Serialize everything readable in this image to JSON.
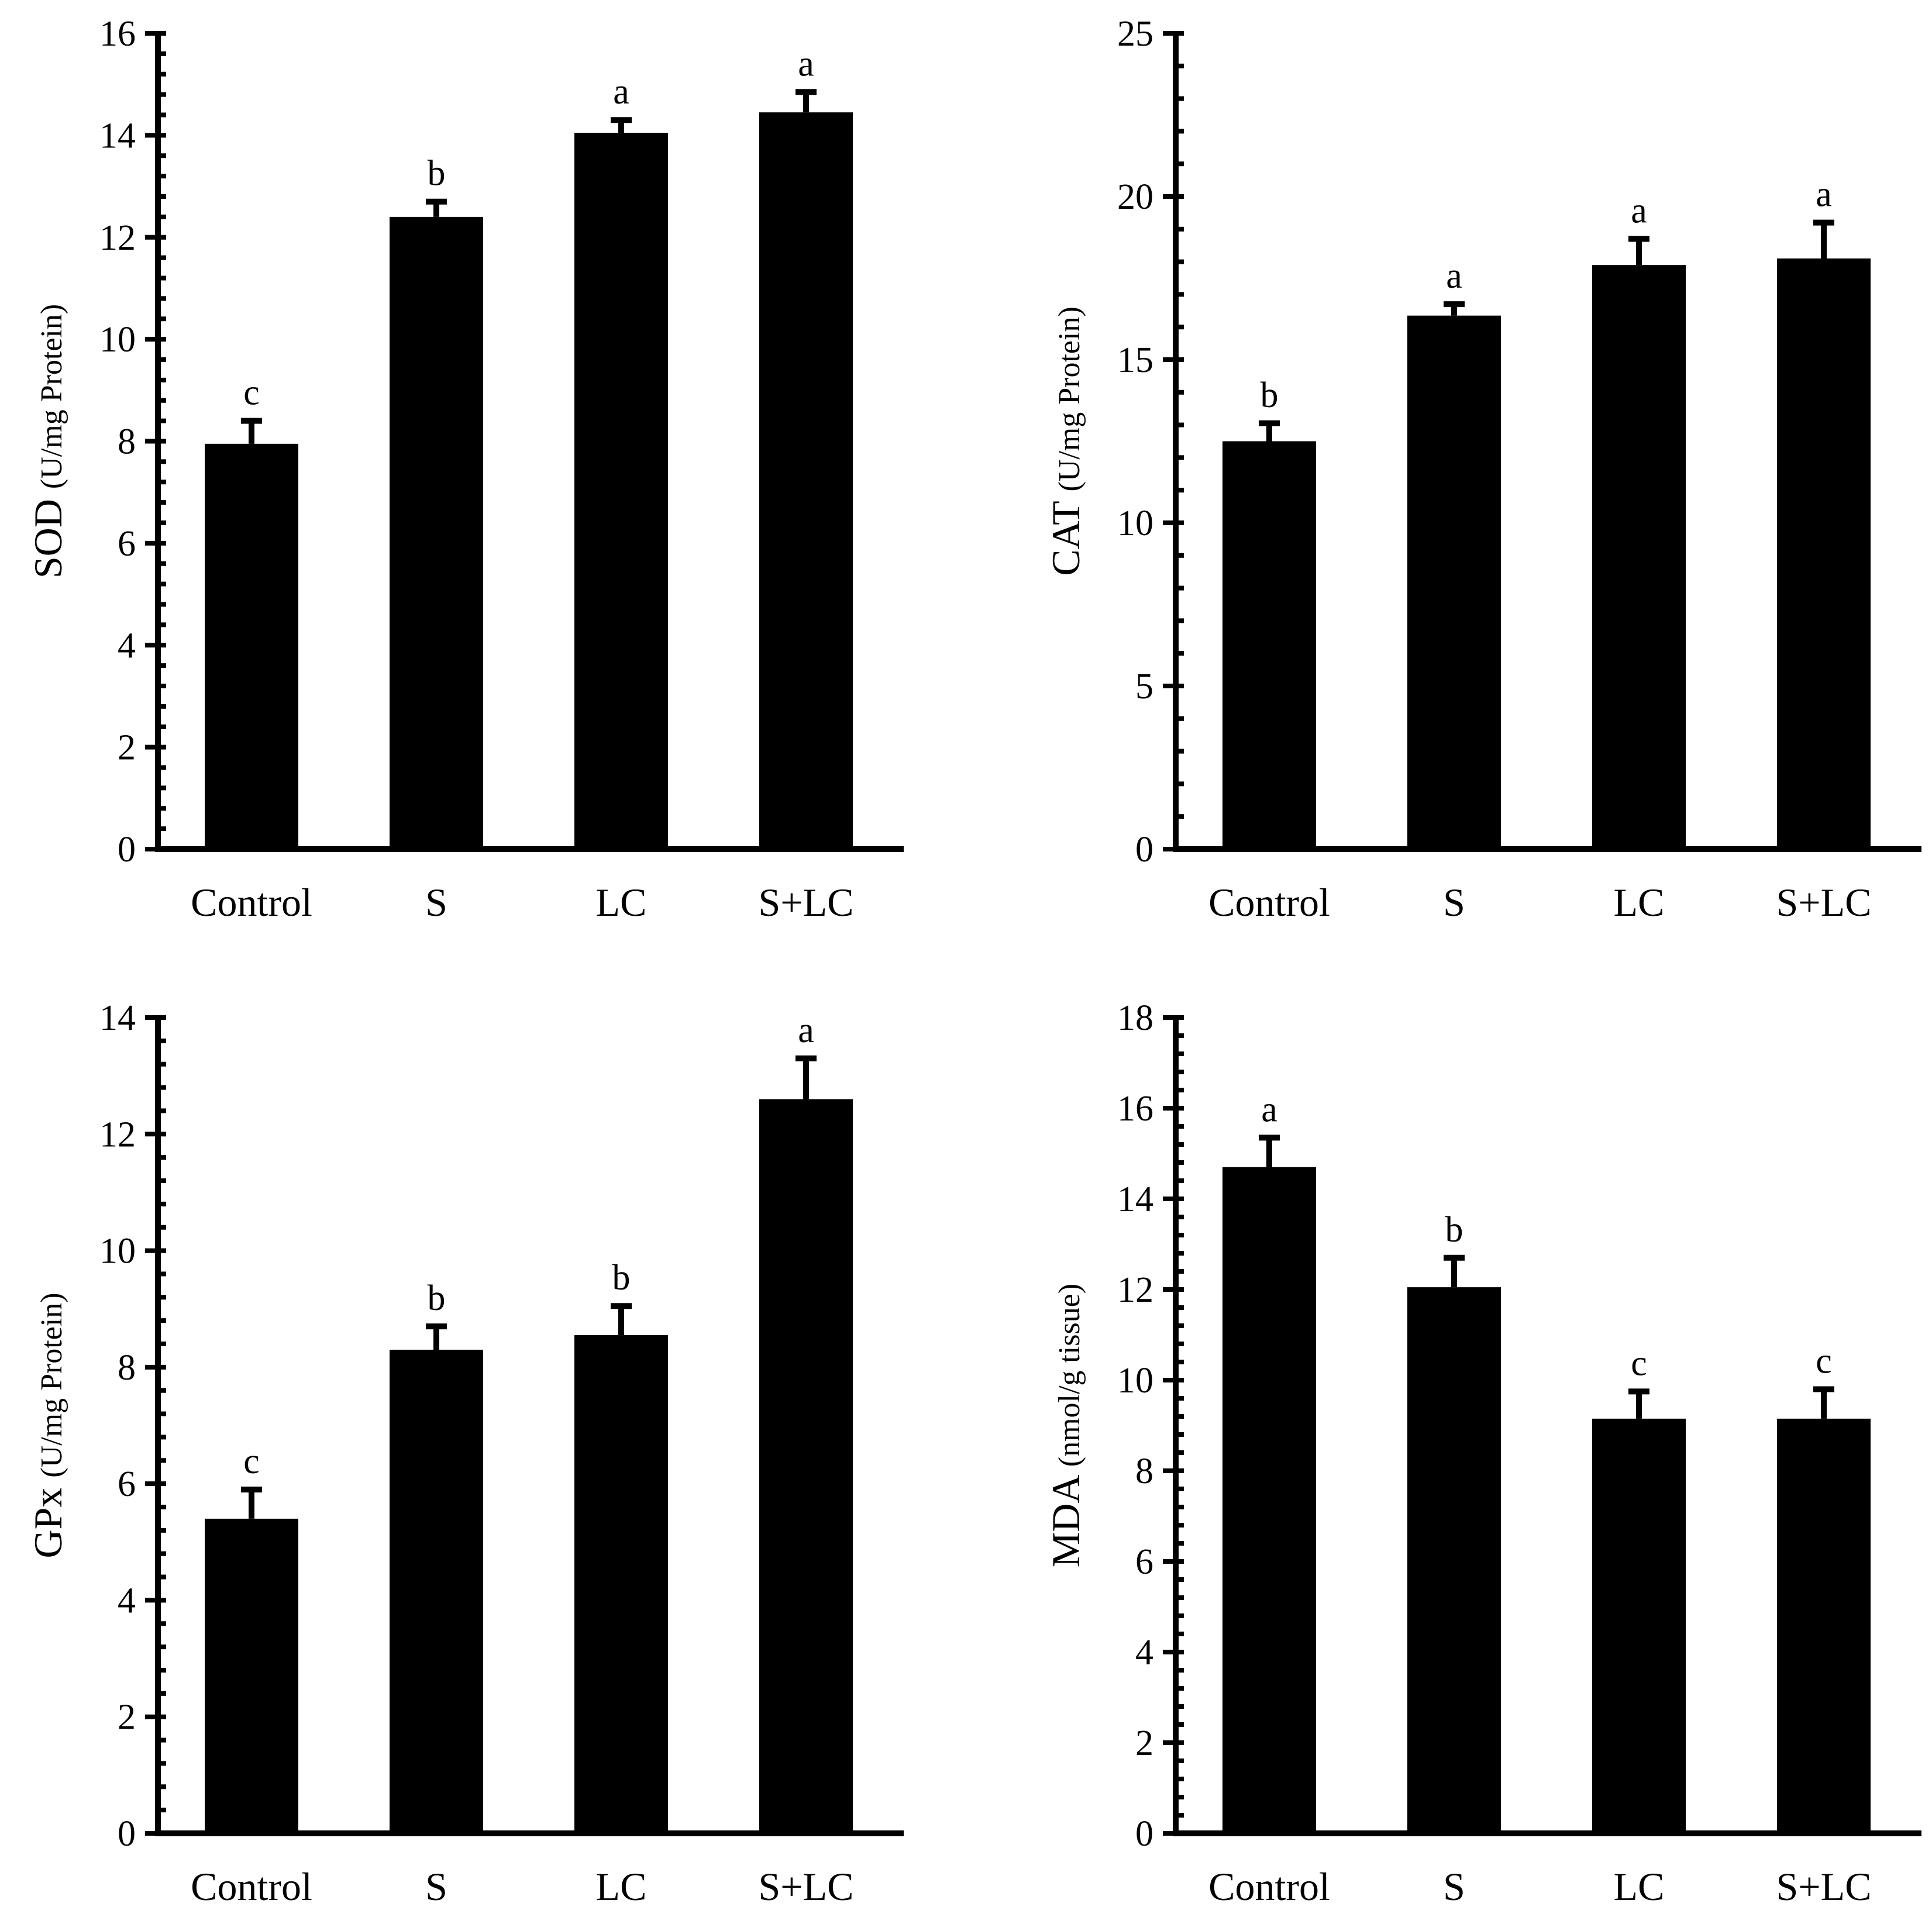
{
  "chart_data": [
    {
      "type": "bar",
      "ylabel_main": "SOD",
      "ylabel_unit": "(U/mg Protein)",
      "categories": [
        "Control",
        "S",
        "LC",
        "S+LC"
      ],
      "values": [
        7.95,
        12.4,
        14.05,
        14.45
      ],
      "errors": [
        0.45,
        0.3,
        0.25,
        0.4
      ],
      "significance": [
        "c",
        "b",
        "a",
        "a"
      ],
      "ylim": [
        0,
        16
      ],
      "yticks": [
        0,
        2,
        4,
        6,
        8,
        10,
        12,
        14,
        16
      ],
      "xlabel": "",
      "title": "",
      "grid": false,
      "legend": ""
    },
    {
      "type": "bar",
      "ylabel_main": "CAT",
      "ylabel_unit": "(U/mg Protein)",
      "categories": [
        "Control",
        "S",
        "LC",
        "S+LC"
      ],
      "values": [
        12.5,
        16.35,
        17.9,
        18.1
      ],
      "errors": [
        0.55,
        0.35,
        0.8,
        1.1
      ],
      "significance": [
        "b",
        "a",
        "a",
        "a"
      ],
      "ylim": [
        0,
        25
      ],
      "yticks": [
        0,
        5,
        10,
        15,
        20,
        25
      ],
      "xlabel": "",
      "title": "",
      "grid": false,
      "legend": ""
    },
    {
      "type": "bar",
      "ylabel_main": "GPx",
      "ylabel_unit": "(U/mg Protein)",
      "categories": [
        "Control",
        "S",
        "LC",
        "S+LC"
      ],
      "values": [
        5.4,
        8.3,
        8.55,
        12.6
      ],
      "errors": [
        0.5,
        0.4,
        0.5,
        0.7
      ],
      "significance": [
        "c",
        "b",
        "b",
        "a"
      ],
      "ylim": [
        0,
        14
      ],
      "yticks": [
        0,
        2,
        4,
        6,
        8,
        10,
        12,
        14
      ],
      "xlabel": "",
      "title": "",
      "grid": false,
      "legend": ""
    },
    {
      "type": "bar",
      "ylabel_main": "MDA",
      "ylabel_unit": "(nmol/g tissue)",
      "categories": [
        "Control",
        "S",
        "LC",
        "S+LC"
      ],
      "values": [
        14.7,
        12.05,
        9.15,
        9.15
      ],
      "errors": [
        0.65,
        0.65,
        0.6,
        0.65
      ],
      "significance": [
        "a",
        "b",
        "c",
        "c"
      ],
      "ylim": [
        0,
        18
      ],
      "yticks": [
        0,
        2,
        4,
        6,
        8,
        10,
        12,
        14,
        16,
        18
      ],
      "xlabel": "",
      "title": "",
      "grid": false,
      "legend": ""
    }
  ]
}
